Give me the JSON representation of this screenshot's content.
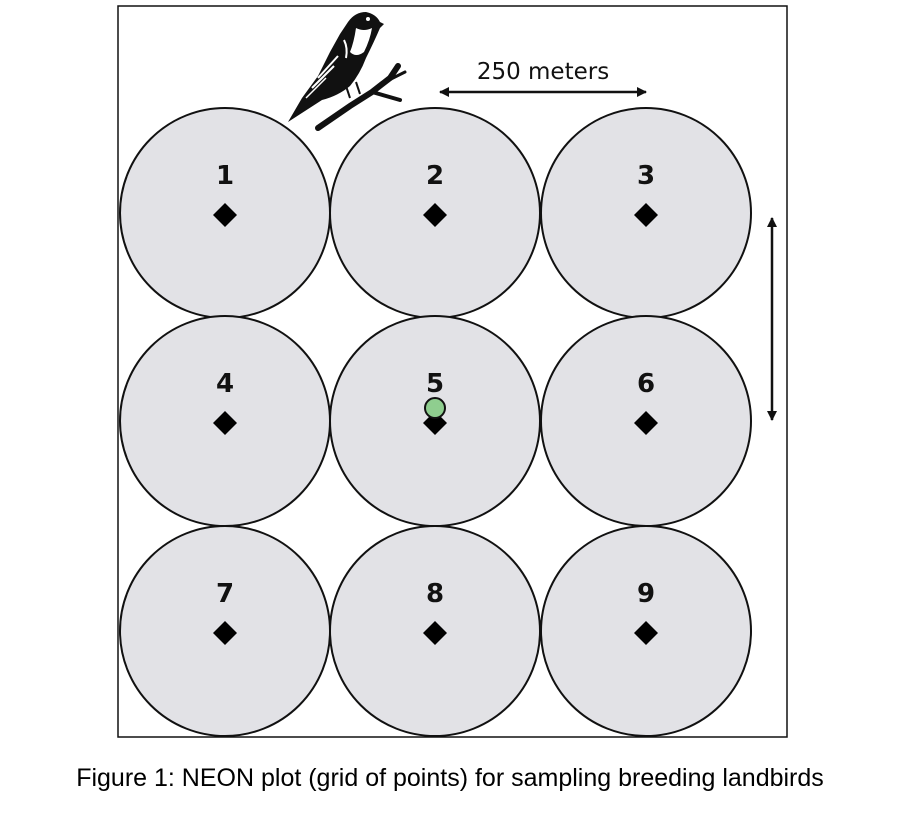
{
  "caption": "Figure 1: NEON plot (grid of points) for sampling breeding landbirds",
  "spacing_label": "250 meters",
  "points": [
    {
      "label": "1"
    },
    {
      "label": "2"
    },
    {
      "label": "3"
    },
    {
      "label": "4"
    },
    {
      "label": "5"
    },
    {
      "label": "6"
    },
    {
      "label": "7"
    },
    {
      "label": "8"
    },
    {
      "label": "9"
    }
  ],
  "highlighted_point": "5",
  "icons": [
    "bird-icon",
    "diamond-marker-icon",
    "double-arrow-icon"
  ],
  "colors": {
    "circle_fill": "#e2e2e6",
    "stroke": "#111111",
    "highlight": "#8fce8f"
  }
}
